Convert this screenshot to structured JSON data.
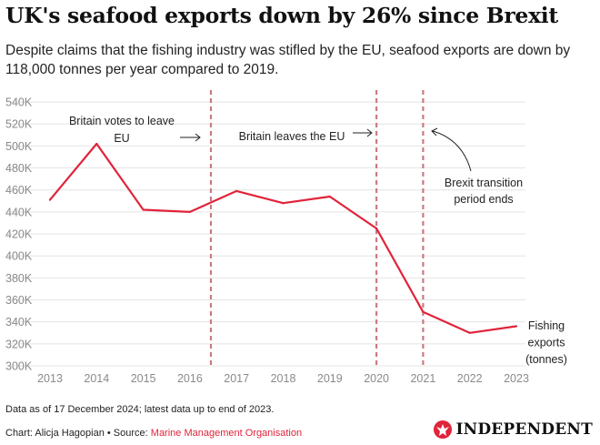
{
  "header": {
    "title": "UK's seafood exports down by 26% since Brexit",
    "subtitle": "Despite claims that the fishing industry was stifled by the EU, seafood exports are down by 118,000 tonnes per year compared to 2019."
  },
  "chart_data": {
    "type": "line",
    "x": [
      2013,
      2014,
      2015,
      2016,
      2017,
      2018,
      2019,
      2020,
      2021,
      2022,
      2023
    ],
    "series": [
      {
        "name": "Fishing exports (tonnes)",
        "label_lines": [
          "Fishing",
          "exports",
          "(tonnes)"
        ],
        "values": [
          451000,
          502000,
          442000,
          440000,
          459000,
          448000,
          454000,
          425000,
          349000,
          330000,
          336000
        ]
      }
    ],
    "yticks": [
      300000,
      320000,
      340000,
      360000,
      380000,
      400000,
      420000,
      440000,
      460000,
      480000,
      500000,
      520000,
      540000
    ],
    "ytick_labels": [
      "300K",
      "320K",
      "340K",
      "360K",
      "380K",
      "400K",
      "420K",
      "440K",
      "460K",
      "480K",
      "500K",
      "520K",
      "540K"
    ],
    "xtick_labels": [
      "2013",
      "2014",
      "2015",
      "2016",
      "2017",
      "2018",
      "2019",
      "2020",
      "2021",
      "2022",
      "2023"
    ],
    "ylim": [
      300000,
      545000
    ],
    "grid": true,
    "line_color": "#e0243a",
    "marker_color": "#c97a85",
    "events": [
      {
        "x": 2016.45,
        "label_lines": [
          "Britain votes to leave",
          "EU"
        ]
      },
      {
        "x": 2020.0,
        "label_lines": [
          "Britain leaves the EU"
        ]
      },
      {
        "x": 2021.0,
        "label_lines": [
          "Brexit transition",
          "period ends"
        ]
      }
    ]
  },
  "footer": {
    "note": "Data as of 17 December 2024; latest data up to end of 2023.",
    "credit_prefix": "Chart: Alicja Hagopian • Source: ",
    "source": "Marine Management Organisation",
    "logo_text": "INDEPENDENT"
  }
}
